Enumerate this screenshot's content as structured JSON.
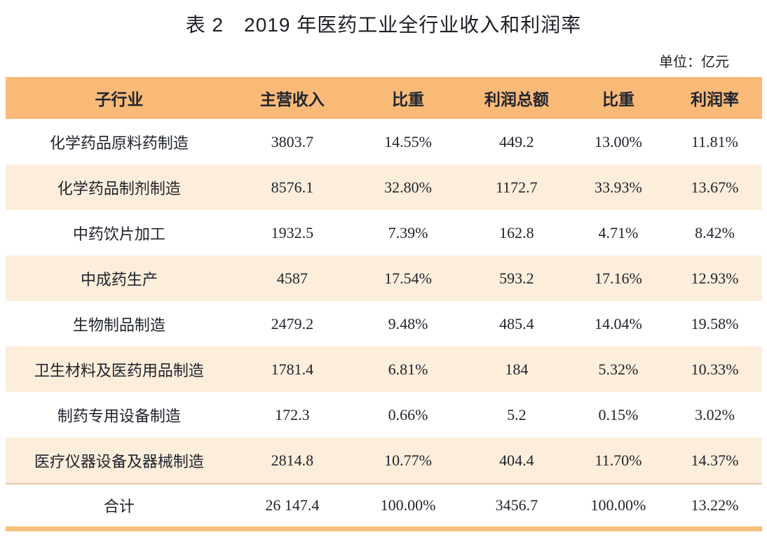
{
  "title": "表 2　2019 年医药工业全行业收入和利润率",
  "unit_note": "单位：亿元",
  "colors": {
    "header_bg": "#f9ba78",
    "alt_row_bg": "#fceeda",
    "bottom_bar": "#f5c17d",
    "divider": "#e2c7a2",
    "text": "#20242e"
  },
  "table": {
    "columns": [
      "子行业",
      "主营收入",
      "比重",
      "利润总额",
      "比重",
      "利润率"
    ],
    "rows": [
      {
        "industry": "化学药品原料药制造",
        "revenue": "3803.7",
        "revenue_share": "14.55%",
        "profit": "449.2",
        "profit_share": "13.00%",
        "margin": "11.81%"
      },
      {
        "industry": "化学药品制剂制造",
        "revenue": "8576.1",
        "revenue_share": "32.80%",
        "profit": "1172.7",
        "profit_share": "33.93%",
        "margin": "13.67%"
      },
      {
        "industry": "中药饮片加工",
        "revenue": "1932.5",
        "revenue_share": "7.39%",
        "profit": "162.8",
        "profit_share": "4.71%",
        "margin": "8.42%"
      },
      {
        "industry": "中成药生产",
        "revenue": "4587",
        "revenue_share": "17.54%",
        "profit": "593.2",
        "profit_share": "17.16%",
        "margin": "12.93%"
      },
      {
        "industry": "生物制品制造",
        "revenue": "2479.2",
        "revenue_share": "9.48%",
        "profit": "485.4",
        "profit_share": "14.04%",
        "margin": "19.58%"
      },
      {
        "industry": "卫生材料及医药用品制造",
        "revenue": "1781.4",
        "revenue_share": "6.81%",
        "profit": "184",
        "profit_share": "5.32%",
        "margin": "10.33%"
      },
      {
        "industry": "制药专用设备制造",
        "revenue": "172.3",
        "revenue_share": "0.66%",
        "profit": "5.2",
        "profit_share": "0.15%",
        "margin": "3.02%"
      },
      {
        "industry": "医疗仪器设备及器械制造",
        "revenue": "2814.8",
        "revenue_share": "10.77%",
        "profit": "404.4",
        "profit_share": "11.70%",
        "margin": "14.37%"
      }
    ],
    "total": {
      "industry": "合计",
      "revenue": "26 147.4",
      "revenue_share": "100.00%",
      "profit": "3456.7",
      "profit_share": "100.00%",
      "margin": "13.22%"
    }
  }
}
